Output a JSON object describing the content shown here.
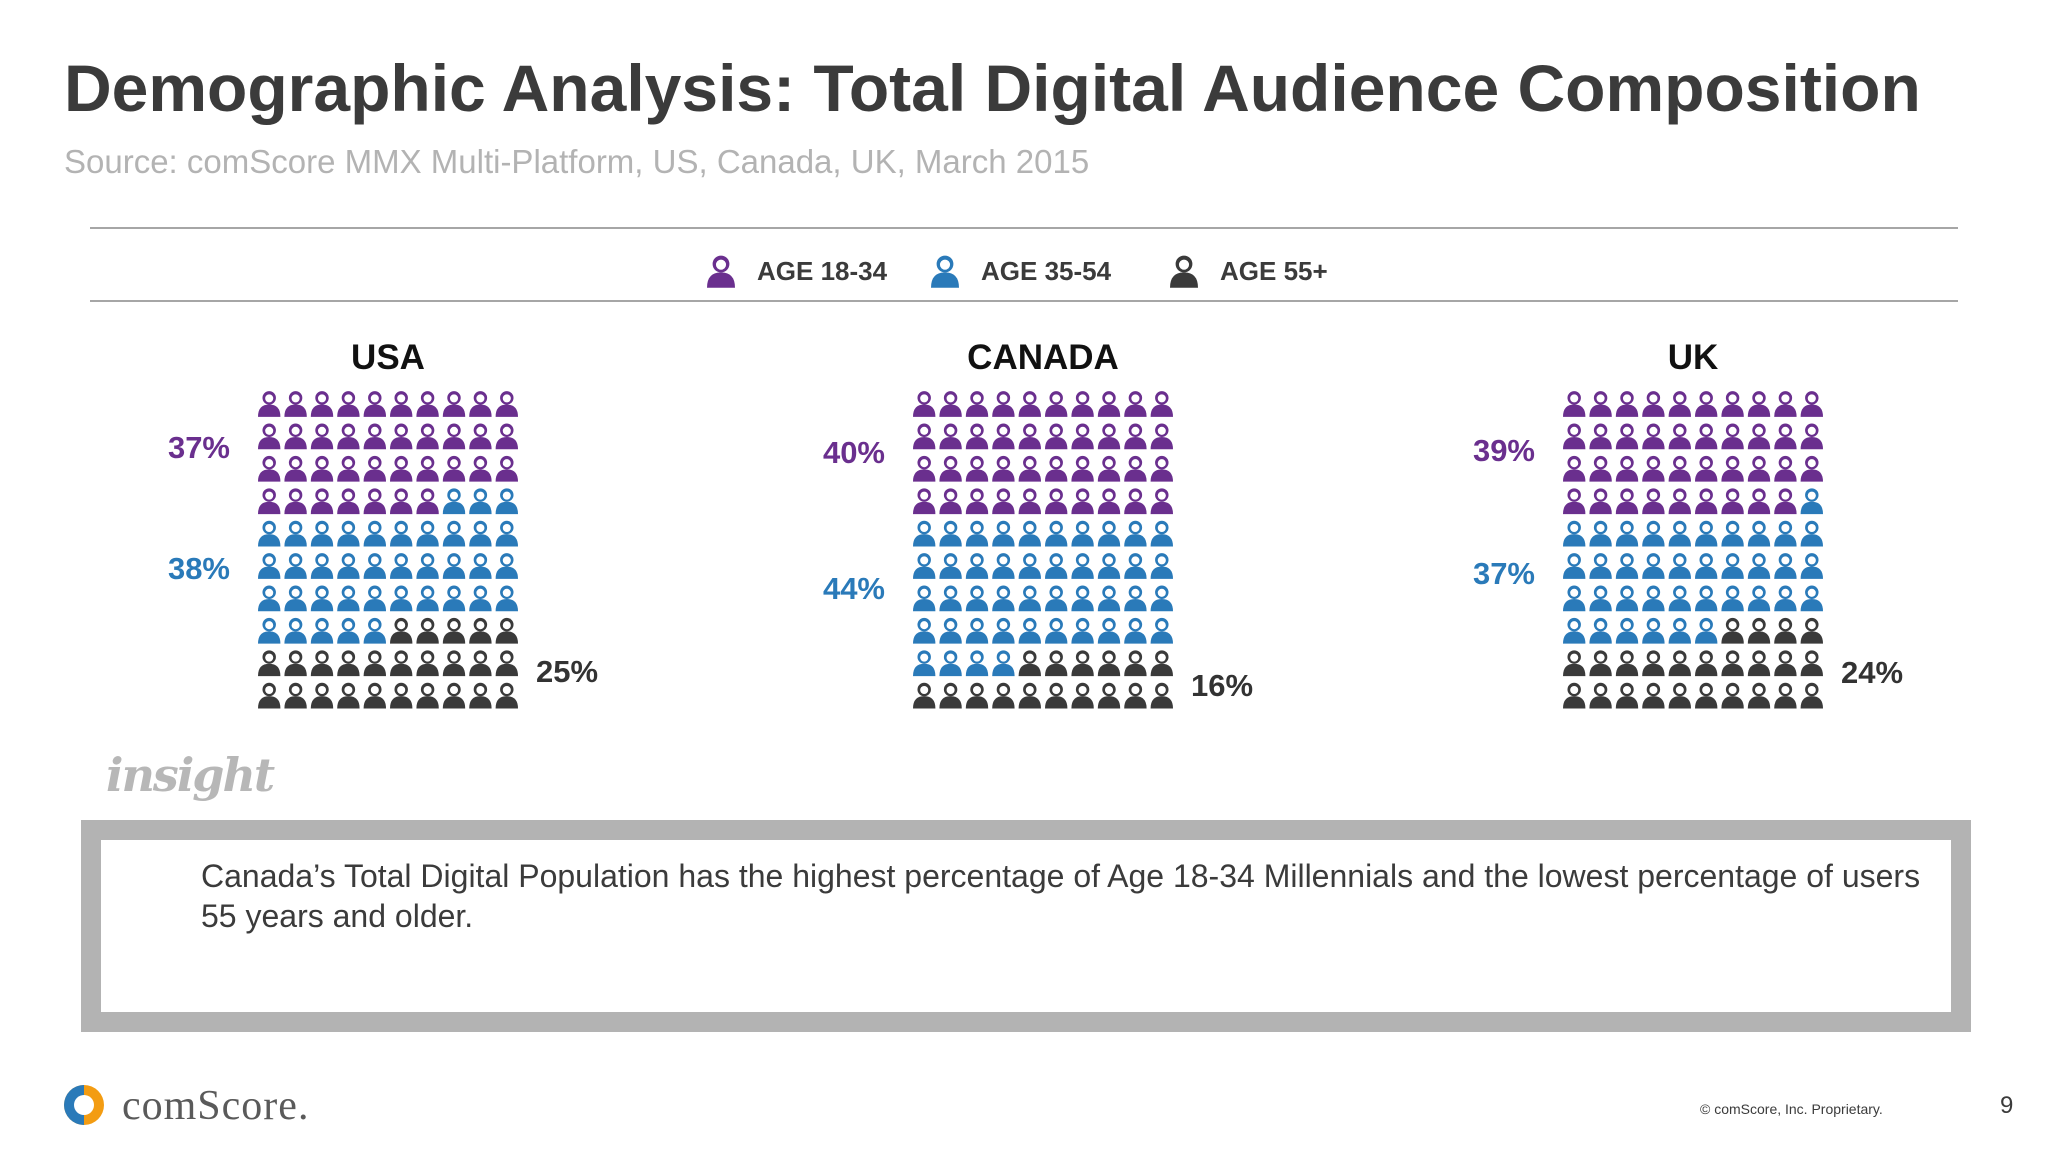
{
  "title": "Demographic Analysis: Total Digital Audience Composition",
  "subtitle": "Source: comScore MMX Multi-Platform, US, Canada, UK, March 2015",
  "colors": {
    "age_18_34": "#6a2f8e",
    "age_35_54": "#2a7ab9",
    "age_55_plus": "#3a3a3a",
    "title": "#3b3b3b",
    "subtitle": "#b3b3b3"
  },
  "legend": [
    {
      "label": "AGE 18-34",
      "color": "#6a2f8e",
      "icon": "person-icon"
    },
    {
      "label": "AGE 35-54",
      "color": "#2a7ab9",
      "icon": "person-icon"
    },
    {
      "label": "AGE 55+",
      "color": "#3a3a3a",
      "icon": "person-icon"
    }
  ],
  "chart_data": {
    "type": "waffle",
    "grid": {
      "rows": 10,
      "cols": 10
    },
    "series_labels": [
      "AGE 18-34",
      "AGE 35-54",
      "AGE 55+"
    ],
    "panels": [
      {
        "country": "USA",
        "values": [
          37,
          38,
          25
        ],
        "labels": [
          "37%",
          "38%",
          "25%"
        ]
      },
      {
        "country": "CANADA",
        "values": [
          40,
          44,
          16
        ],
        "labels": [
          "40%",
          "44%",
          "16%"
        ]
      },
      {
        "country": "UK",
        "values": [
          39,
          37,
          24
        ],
        "labels": [
          "39%",
          "37%",
          "24%"
        ]
      }
    ]
  },
  "insight": {
    "logo_text": "insight",
    "text": "Canada’s Total Digital Population has the highest percentage of Age 18-34 Millennials and the lowest percentage of users 55 years and older."
  },
  "footer": {
    "brand": "comScore.",
    "copyright": "© comScore, Inc. Proprietary.",
    "page_number": "9"
  }
}
